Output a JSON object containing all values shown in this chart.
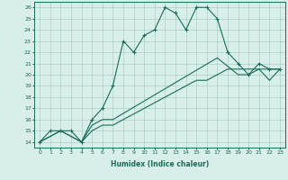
{
  "xlabel": "Humidex (Indice chaleur)",
  "ylabel": "",
  "xlim": [
    -0.5,
    23.5
  ],
  "ylim": [
    13.5,
    26.5
  ],
  "xticks": [
    0,
    1,
    2,
    3,
    4,
    5,
    6,
    7,
    8,
    9,
    10,
    11,
    12,
    13,
    14,
    15,
    16,
    17,
    18,
    19,
    20,
    21,
    22,
    23
  ],
  "yticks": [
    14,
    15,
    16,
    17,
    18,
    19,
    20,
    21,
    22,
    23,
    24,
    25,
    26
  ],
  "line_color": "#1a6b5a",
  "bg_color": "#d8eee8",
  "grid_color": "#a0c8c0",
  "line1_x": [
    0,
    1,
    2,
    3,
    4,
    5,
    6,
    7,
    8,
    9,
    10,
    11,
    12,
    13,
    14,
    15,
    16,
    17,
    18,
    19,
    20,
    21,
    22,
    23
  ],
  "line1_y": [
    14,
    15,
    15,
    15,
    14,
    16,
    17,
    19,
    23,
    22,
    23.5,
    24,
    26,
    25.5,
    24,
    26,
    26,
    25,
    22,
    21,
    20,
    21,
    20.5,
    20.5
  ],
  "line2_x": [
    0,
    2,
    3,
    4,
    5,
    6,
    7,
    17,
    19,
    20,
    21,
    22,
    23
  ],
  "line2_y": [
    14,
    15,
    14.5,
    14,
    15.5,
    16,
    16,
    21.5,
    20,
    20,
    20.5,
    19.5,
    20.5
  ],
  "line3_x": [
    0,
    2,
    3,
    4,
    5,
    6,
    7,
    8,
    9,
    10,
    11,
    12,
    13,
    14,
    15,
    16,
    17,
    18,
    19,
    20,
    21,
    22,
    23
  ],
  "line3_y": [
    14,
    15,
    14.5,
    14,
    15,
    15.5,
    15.5,
    16,
    16.5,
    17,
    17.5,
    18,
    18.5,
    19,
    19.5,
    19.5,
    20,
    20.5,
    20.5,
    20.5,
    20.5,
    20.5,
    20.5
  ]
}
